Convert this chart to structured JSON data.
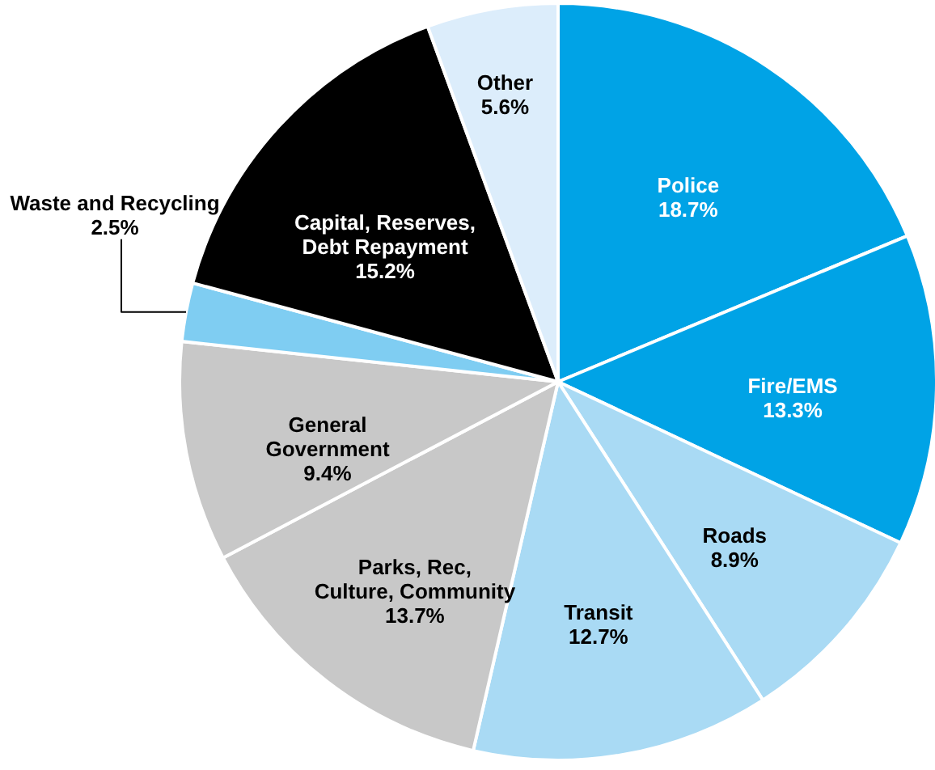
{
  "chart_data": {
    "type": "pie",
    "categories": [
      "Police",
      "Fire/EMS",
      "Roads",
      "Transit",
      "Parks, Rec,\nCulture, Community",
      "General\nGovernment",
      "Waste and Recycling",
      "Capital, Reserves,\nDebt Repayment",
      "Other"
    ],
    "values": [
      18.7,
      13.3,
      8.9,
      12.7,
      13.7,
      9.4,
      2.5,
      15.2,
      5.6
    ],
    "value_labels": [
      "18.7%",
      "13.3%",
      "8.9%",
      "12.7%",
      "13.7%",
      "9.4%",
      "2.5%",
      "15.2%",
      "5.6%"
    ],
    "colors": [
      "#00a3e6",
      "#00a3e6",
      "#a9daf4",
      "#a9daf4",
      "#c8c8c8",
      "#c8c8c8",
      "#7fcdf2",
      "#000000",
      "#dcedfb"
    ]
  }
}
